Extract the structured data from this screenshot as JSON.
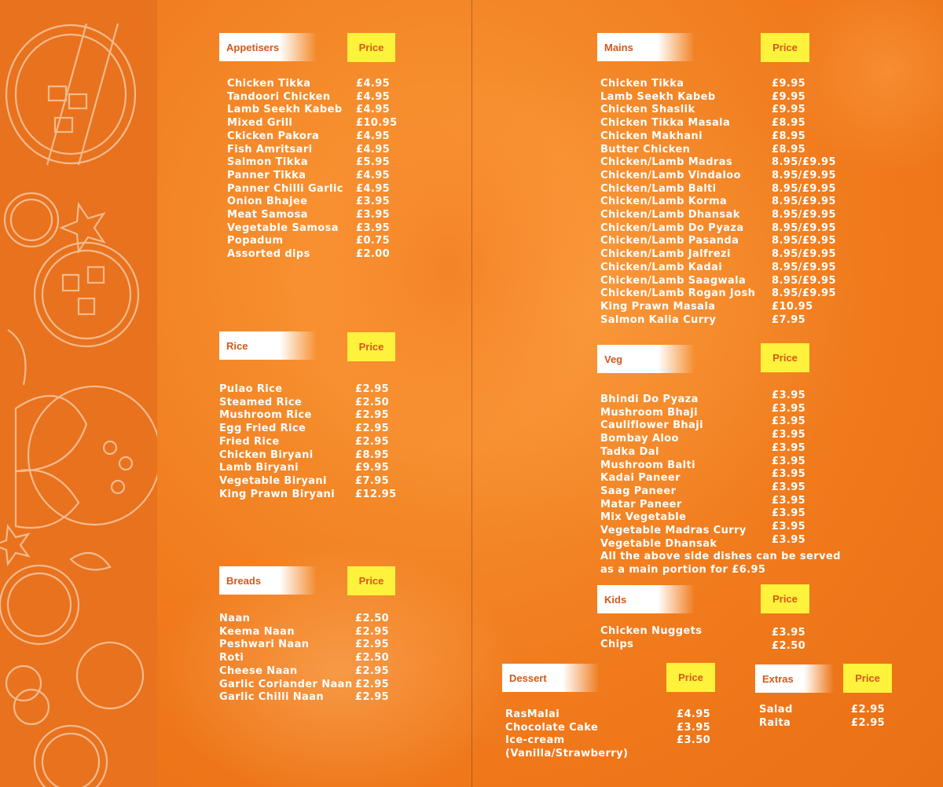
{
  "sections": {
    "appetisers": {
      "title": "Appetisers",
      "price_label": "Price",
      "items": [
        {
          "name": "Chicken Tikka",
          "price": "£4.95"
        },
        {
          "name": "Tandoori Chicken",
          "price": "£4.95"
        },
        {
          "name": "Lamb Seekh Kabeb",
          "price": "£4.95"
        },
        {
          "name": "Mixed Grill",
          "price": "£10.95"
        },
        {
          "name": "Ckicken Pakora",
          "price": "£4.95"
        },
        {
          "name": "Fish Amritsari",
          "price": "£4.95"
        },
        {
          "name": "Salmon Tikka",
          "price": "£5.95"
        },
        {
          "name": "Panner Tikka",
          "price": "£4.95"
        },
        {
          "name": "Panner Chilli Garlic",
          "price": "£4.95"
        },
        {
          "name": "Onion Bhajee",
          "price": "£3.95"
        },
        {
          "name": "Meat Samosa",
          "price": "£3.95"
        },
        {
          "name": "Vegetable Samosa",
          "price": "£3.95"
        },
        {
          "name": "Popadum",
          "price": "£0.75"
        },
        {
          "name": "Assorted dips",
          "price": "£2.00"
        }
      ]
    },
    "rice": {
      "title": "Rice",
      "price_label": "Price",
      "items": [
        {
          "name": "Pulao Rice",
          "price": "£2.95"
        },
        {
          "name": "Steamed Rice",
          "price": "£2.50"
        },
        {
          "name": "Mushroom Rice",
          "price": "£2.95"
        },
        {
          "name": "Egg Fried Rice",
          "price": "£2.95"
        },
        {
          "name": "Fried Rice",
          "price": "£2.95"
        },
        {
          "name": "Chicken Biryani",
          "price": "£8.95"
        },
        {
          "name": "Lamb Biryani",
          "price": "£9.95"
        },
        {
          "name": "Vegetable Biryani",
          "price": "£7.95"
        },
        {
          "name": "King Prawn Biryani",
          "price": "£12.95"
        }
      ]
    },
    "breads": {
      "title": "Breads",
      "price_label": "Price",
      "items": [
        {
          "name": "Naan",
          "price": "£2.50"
        },
        {
          "name": "Keema Naan",
          "price": "£2.95"
        },
        {
          "name": "Peshwari Naan",
          "price": "£2.95"
        },
        {
          "name": "Roti",
          "price": "£2.50"
        },
        {
          "name": "Cheese Naan",
          "price": "£2.95"
        },
        {
          "name": "Garlic Coriander Naan",
          "price": "£2.95"
        },
        {
          "name": "Garlic Chilli Naan",
          "price": "£2.95"
        }
      ]
    },
    "mains": {
      "title": "Mains",
      "price_label": "Price",
      "items": [
        {
          "name": "Chicken Tikka",
          "price": "£9.95"
        },
        {
          "name": "Lamb Seekh Kabeb",
          "price": "£9.95"
        },
        {
          "name": "Chicken Shaslik",
          "price": "£9.95"
        },
        {
          "name": "Chicken Tikka Masala",
          "price": "£8.95"
        },
        {
          "name": "Chicken Makhani",
          "price": "£8.95"
        },
        {
          "name": "Butter Chicken",
          "price": "£8.95"
        },
        {
          "name": "Chicken/Lamb Madras",
          "price": "8.95/£9.95"
        },
        {
          "name": "Chicken/Lamb Vindaloo",
          "price": "8.95/£9.95"
        },
        {
          "name": "Chicken/Lamb Balti",
          "price": "8.95/£9.95"
        },
        {
          "name": "Chicken/Lamb Korma",
          "price": "8.95/£9.95"
        },
        {
          "name": "Chicken/Lamb Dhansak",
          "price": "8.95/£9.95"
        },
        {
          "name": "Chicken/Lamb Do Pyaza",
          "price": "8.95/£9.95"
        },
        {
          "name": "Chicken/Lamb Pasanda",
          "price": "8.95/£9.95"
        },
        {
          "name": "Chicken/Lamb Jalfrezi",
          "price": "8.95/£9.95"
        },
        {
          "name": "Chicken/Lamb Kadai",
          "price": "8.95/£9.95"
        },
        {
          "name": "Chicken/Lamb Saagwala",
          "price": "8.95/£9.95"
        },
        {
          "name": "Chicken/Lamb Rogan Josh",
          "price": "8.95/£9.95"
        },
        {
          "name": "King Prawn Masala",
          "price": "£10.95"
        },
        {
          "name": "Salmon Kalia Curry",
          "price": "£7.95"
        }
      ]
    },
    "veg": {
      "title": "Veg",
      "price_label": "Price",
      "items": [
        {
          "name": "Bhindi Do Pyaza",
          "price": "£3.95"
        },
        {
          "name": "Mushroom Bhaji",
          "price": "£3.95"
        },
        {
          "name": "Cauliflower Bhaji",
          "price": "£3.95"
        },
        {
          "name": "Bombay Aloo",
          "price": "£3.95"
        },
        {
          "name": "Tadka Dal",
          "price": "£3.95"
        },
        {
          "name": "Mushroom Balti",
          "price": "£3.95"
        },
        {
          "name": "Kadai Paneer",
          "price": "£3.95"
        },
        {
          "name": "Saag Paneer",
          "price": "£3.95"
        },
        {
          "name": "Matar Paneer",
          "price": "£3.95"
        },
        {
          "name": "Mix Vegetable",
          "price": "£3.95"
        },
        {
          "name": "Vegetable Madras Curry",
          "price": "£3.95"
        },
        {
          "name": "Vegetable Dhansak",
          "price": "£3.95"
        }
      ],
      "note_line1": "All the above side dishes can be served",
      "note_line2": "as a main portion for £6.95"
    },
    "kids": {
      "title": "Kids",
      "price_label": "Price",
      "items": [
        {
          "name": "Chicken Nuggets",
          "price": "£3.95"
        },
        {
          "name": "Chips",
          "price": "£2.50"
        }
      ]
    },
    "dessert": {
      "title": "Dessert",
      "price_label": "Price",
      "items": [
        {
          "name": "RasMalai",
          "price": "£4.95"
        },
        {
          "name": "Chocolate Cake",
          "price": "£3.95"
        },
        {
          "name": "Ice-cream",
          "price": "£3.50"
        },
        {
          "name": "(Vanilla/Strawberry)",
          "price": ""
        }
      ]
    },
    "extras": {
      "title": "Extras",
      "price_label": "Price",
      "items": [
        {
          "name": "Salad",
          "price": "£2.95"
        },
        {
          "name": "Raita",
          "price": "£2.95"
        }
      ]
    }
  },
  "colors": {
    "background": "#f07a1c",
    "header_text": "#d4581a",
    "price_box": "#fff23c",
    "item_text": "#ffffff"
  }
}
